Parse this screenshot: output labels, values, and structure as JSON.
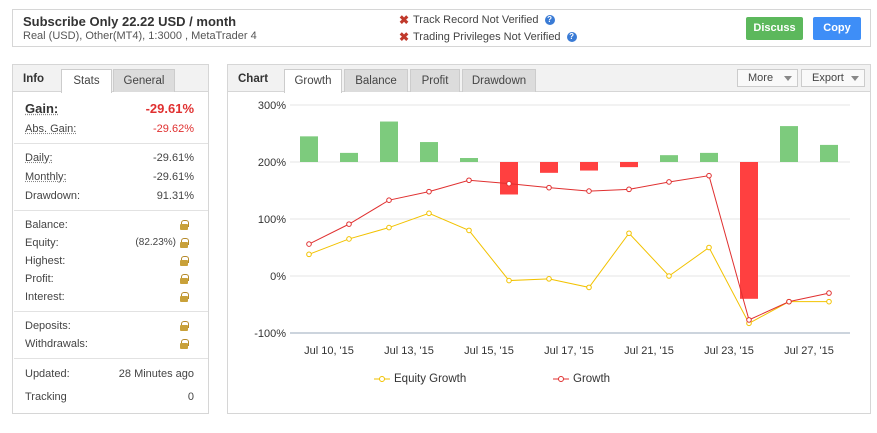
{
  "header": {
    "title": "Subscribe Only 22.22 USD / month",
    "subtitle": "Real (USD), Other(MT4), 1:3000 , MetaTrader 4",
    "track_record": "Track Record Not Verified",
    "trading_privileges": "Trading Privileges Not Verified",
    "discuss_label": "Discuss",
    "copy_label": "Copy"
  },
  "left_panel": {
    "title": "Info",
    "tabs": [
      "Stats",
      "General"
    ],
    "gain_label": "Gain:",
    "gain_value": "-29.61%",
    "abs_gain_label": "Abs. Gain:",
    "abs_gain_value": "-29.62%",
    "daily_label": "Daily:",
    "daily_value": "-29.61%",
    "monthly_label": "Monthly:",
    "monthly_value": "-29.61%",
    "drawdown_label": "Drawdown:",
    "drawdown_value": "91.31%",
    "balance_label": "Balance:",
    "equity_label": "Equity:",
    "equity_pct": "(82.23%)",
    "highest_label": "Highest:",
    "profit_label": "Profit:",
    "interest_label": "Interest:",
    "deposits_label": "Deposits:",
    "withdrawals_label": "Withdrawals:",
    "updated_label": "Updated:",
    "updated_value": "28 Minutes ago",
    "tracking_label": "Tracking",
    "tracking_value": "0"
  },
  "chart_panel": {
    "title": "Chart",
    "tabs": [
      "Growth",
      "Balance",
      "Profit",
      "Drawdown"
    ],
    "more_label": "More",
    "export_label": "Export"
  },
  "chart_data": {
    "type": "bar+line",
    "ylim": [
      -100,
      300
    ],
    "yticks": [
      "300%",
      "200%",
      "100%",
      "0%",
      "-100%"
    ],
    "ytick_values": [
      300,
      200,
      100,
      0,
      -100
    ],
    "xtick_labels": [
      "Jul 10, '15",
      "Jul 13, '15",
      "Jul 15, '15",
      "Jul 17, '15",
      "Jul 21, '15",
      "Jul 23, '15",
      "Jul 27, '15"
    ],
    "xtick_index": [
      0,
      2,
      4,
      6,
      8,
      10,
      12
    ],
    "bar_baseline": 200,
    "bars": [
      245,
      216,
      271,
      235,
      207,
      143,
      181,
      185,
      191,
      212,
      216,
      -40,
      263,
      230
    ],
    "bar_colors": {
      "positive": "#7dcb7d",
      "negative": "#ff4040"
    },
    "series": [
      {
        "name": "Equity Growth",
        "color": "#f2c200",
        "values": [
          38,
          65,
          85,
          110,
          80,
          -8,
          -5,
          -20,
          75,
          0,
          50,
          -83,
          -45,
          -45
        ]
      },
      {
        "name": "Growth",
        "color": "#e03030",
        "values": [
          56,
          91,
          133,
          148,
          168,
          162,
          155,
          149,
          152,
          165,
          176,
          -77,
          -45,
          -30
        ]
      }
    ]
  }
}
